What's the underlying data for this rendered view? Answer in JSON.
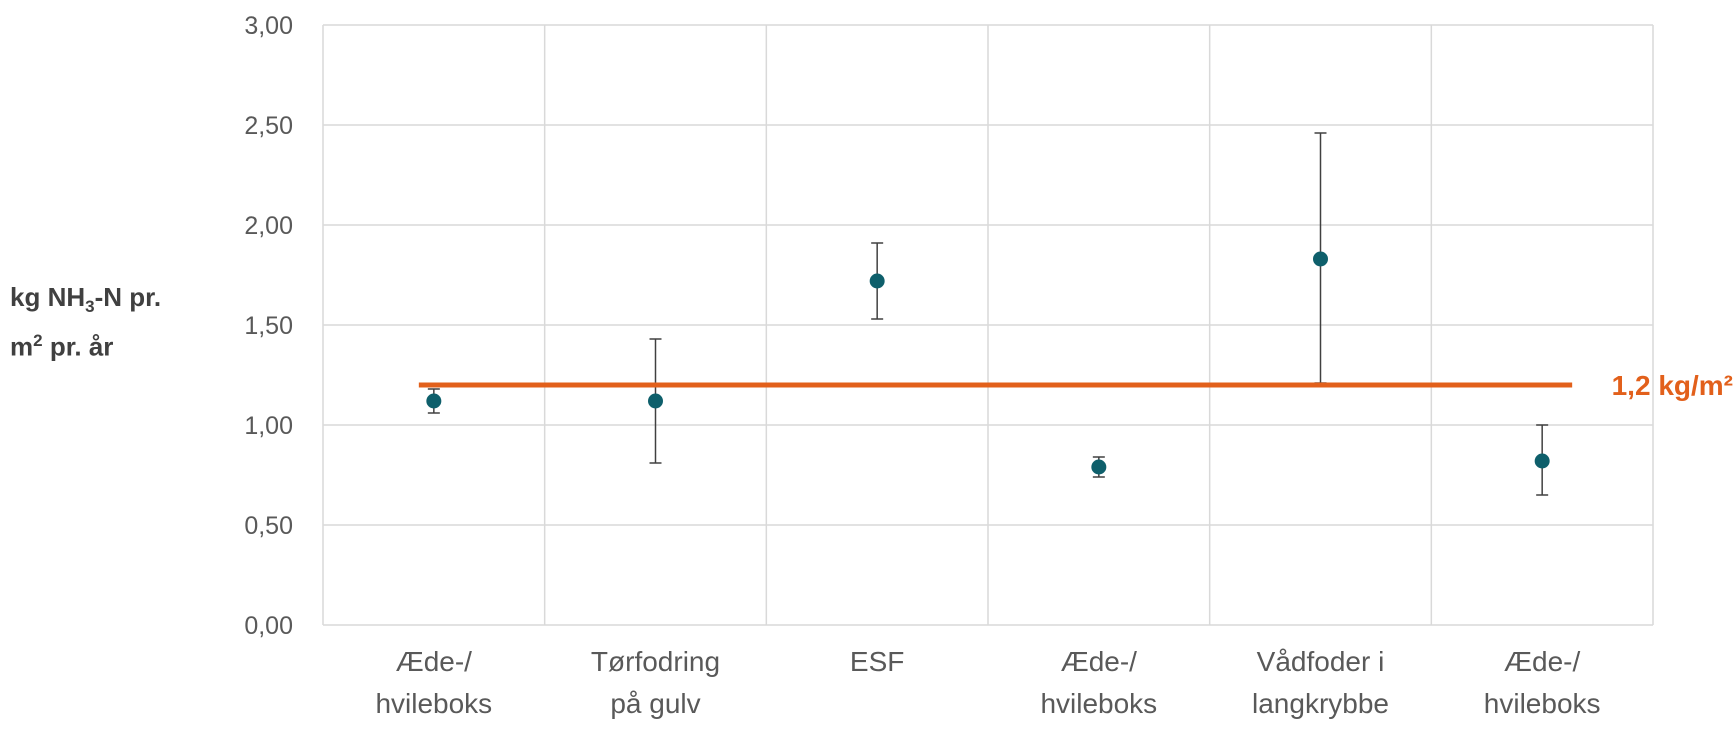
{
  "chart_data": {
    "type": "scatter",
    "categories": [
      [
        "Æde-/",
        "hvileboks"
      ],
      [
        "Tørfodring",
        "på gulv"
      ],
      [
        "ESF",
        ""
      ],
      [
        "Æde-/",
        "hvileboks"
      ],
      [
        "Vådfoder i",
        "langkrybbe"
      ],
      [
        "Æde-/",
        "hvileboks"
      ]
    ],
    "values": [
      1.12,
      1.12,
      1.72,
      0.79,
      1.83,
      0.82
    ],
    "error_low": [
      1.06,
      0.81,
      1.53,
      0.74,
      1.21,
      0.65
    ],
    "error_high": [
      1.18,
      1.43,
      1.91,
      0.84,
      2.46,
      1.0
    ],
    "ylim": [
      0,
      3
    ],
    "yticks": [
      "0,00",
      "0,50",
      "1,00",
      "1,50",
      "2,00",
      "2,50",
      "3,00"
    ],
    "ylabel": {
      "line1_pre": "kg NH",
      "line1_sub": "3",
      "line1_post": "-N pr.",
      "line2_pre": "m",
      "line2_sup": "2",
      "line2_post": " pr. år"
    },
    "reference_line": {
      "value": 1.2,
      "label": "1,2 kg/m²"
    },
    "grid": true,
    "colors": {
      "marker": "#0E5F6B",
      "reference": "#E2601B",
      "grid": "#D9D9D9",
      "error": "#404040"
    }
  }
}
